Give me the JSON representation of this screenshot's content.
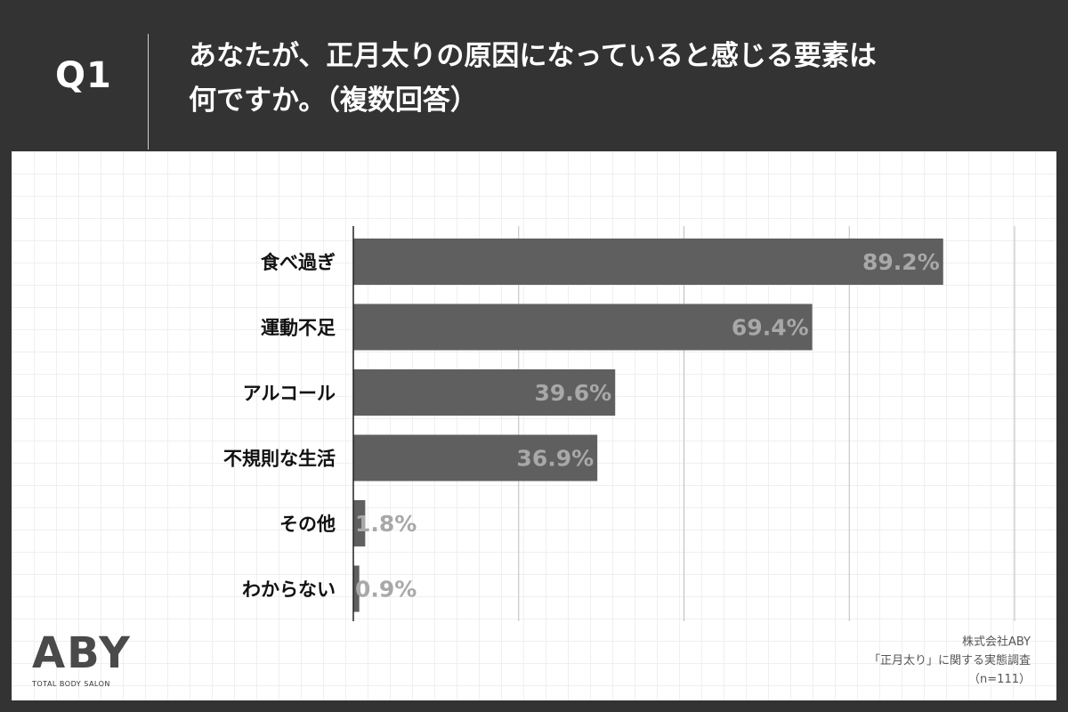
{
  "header": {
    "q_label": "Q1",
    "question_line1": "あなたが、正月太りの原因になっていると感じる要素は",
    "question_line2": "何ですか。（複数回答）"
  },
  "chart_data": {
    "type": "bar",
    "orientation": "horizontal",
    "categories": [
      "食べ過ぎ",
      "運動不足",
      "アルコール",
      "不規則な生活",
      "その他",
      "わからない"
    ],
    "values": [
      89.2,
      69.4,
      39.6,
      36.9,
      1.8,
      0.9
    ],
    "value_labels": [
      "89.2%",
      "69.4%",
      "39.6%",
      "36.9%",
      "1.8%",
      "0.9%"
    ],
    "xlim": [
      0,
      100
    ],
    "grid": true,
    "bar_color": "#5f5f5f",
    "label_color": "#a8a8a8"
  },
  "logo": {
    "mark": "ABY",
    "sub": "TOTAL BODY SALON"
  },
  "source": {
    "company": "株式会社ABY",
    "survey": "「正月太り」に関する実態調査",
    "n": "（n=111）"
  }
}
